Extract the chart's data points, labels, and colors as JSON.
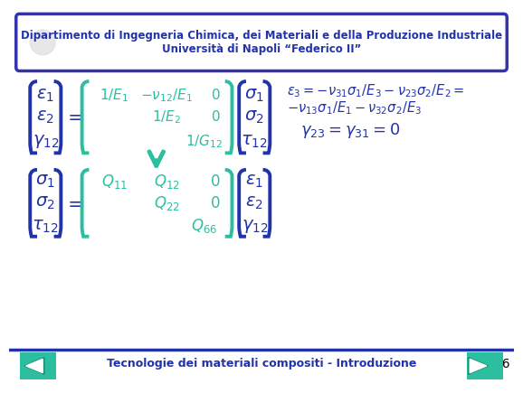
{
  "bg_color": "#FFFFFF",
  "header_box_color": "#FFFFFF",
  "header_border_color": "#3333AA",
  "header_text_line1": "Dipartimento di Ingegneria Chimica, dei Materiali e della Produzione Industriale",
  "header_text_line2": "Università di Napoli “Federico II”",
  "header_text_color": "#2233AA",
  "teal_color": "#2BBFA0",
  "dark_blue": "#2233AA",
  "footer_text": "Tecnologie dei materiali compositi - Introduzione",
  "footer_text_color": "#2233AA",
  "page_num": "26",
  "separator_color": "#2233AA",
  "nav_btn_color": "#2BBFA0"
}
